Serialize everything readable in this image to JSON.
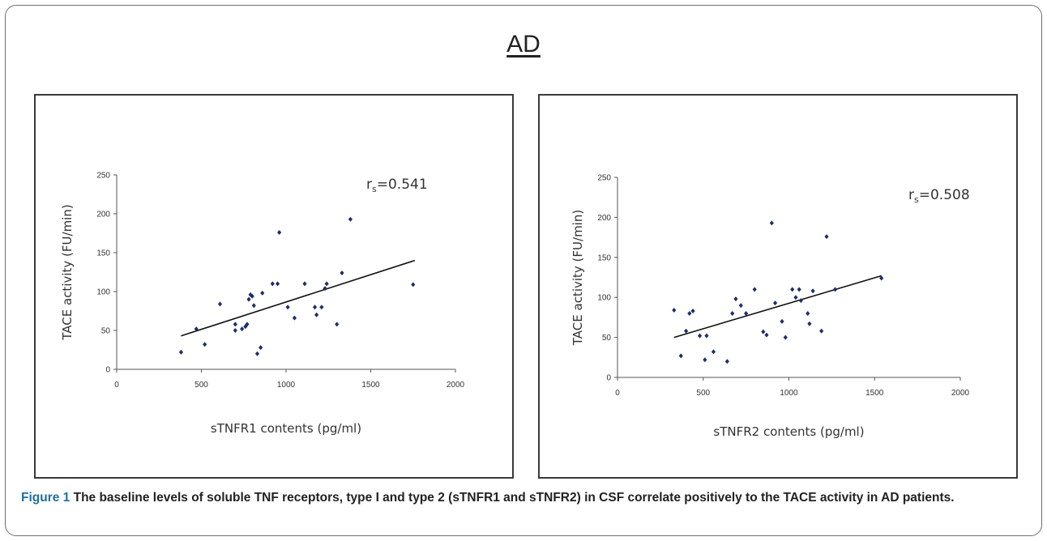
{
  "figure": {
    "title": "AD",
    "caption_lead": "Figure 1",
    "caption_text": " The baseline levels of soluble TNF receptors, type I and type 2 (sTNFR1 and sTNFR2) in CSF correlate positively to the TACE activity in AD patients."
  },
  "chart_data": [
    {
      "type": "scatter",
      "xlabel": "sTNFR1 contents (pg/ml)",
      "ylabel": "TACE activity (FU/min)",
      "annotation": {
        "r": "r",
        "sub": "s",
        "value": "=0.541"
      },
      "xlim": [
        0,
        2000
      ],
      "ylim": [
        0,
        250
      ],
      "xticks": [
        0,
        500,
        1000,
        1500,
        2000
      ],
      "yticks": [
        0,
        50,
        100,
        150,
        200,
        250
      ],
      "grid": false,
      "colors": {
        "points": "#1f2d6b",
        "trend": "#111111"
      },
      "trendline": {
        "x": [
          380,
          1760
        ],
        "y": [
          43,
          140
        ]
      },
      "points": [
        [
          380,
          22
        ],
        [
          470,
          52
        ],
        [
          520,
          32
        ],
        [
          610,
          84
        ],
        [
          700,
          58
        ],
        [
          700,
          50
        ],
        [
          740,
          52
        ],
        [
          760,
          55
        ],
        [
          770,
          58
        ],
        [
          780,
          90
        ],
        [
          790,
          96
        ],
        [
          800,
          94
        ],
        [
          810,
          82
        ],
        [
          830,
          20
        ],
        [
          850,
          28
        ],
        [
          860,
          98
        ],
        [
          920,
          110
        ],
        [
          950,
          110
        ],
        [
          960,
          176
        ],
        [
          1010,
          80
        ],
        [
          1050,
          66
        ],
        [
          1110,
          110
        ],
        [
          1170,
          80
        ],
        [
          1180,
          70
        ],
        [
          1210,
          80
        ],
        [
          1230,
          104
        ],
        [
          1240,
          110
        ],
        [
          1300,
          58
        ],
        [
          1330,
          124
        ],
        [
          1380,
          193
        ],
        [
          1750,
          109
        ]
      ]
    },
    {
      "type": "scatter",
      "xlabel": "sTNFR2 contents (pg/ml)",
      "ylabel": "TACE activity (FU/min)",
      "annotation": {
        "r": "r",
        "sub": "s",
        "value": "=0.508"
      },
      "xlim": [
        0,
        2000
      ],
      "ylim": [
        0,
        250
      ],
      "xticks": [
        0,
        500,
        1000,
        1500,
        2000
      ],
      "yticks": [
        0,
        50,
        100,
        150,
        200,
        250
      ],
      "grid": false,
      "colors": {
        "points": "#1f2d6b",
        "trend": "#111111"
      },
      "trendline": {
        "x": [
          330,
          1540
        ],
        "y": [
          50,
          127
        ]
      },
      "points": [
        [
          330,
          84
        ],
        [
          370,
          27
        ],
        [
          400,
          58
        ],
        [
          420,
          80
        ],
        [
          440,
          83
        ],
        [
          480,
          52
        ],
        [
          510,
          22
        ],
        [
          520,
          52
        ],
        [
          560,
          32
        ],
        [
          640,
          20
        ],
        [
          670,
          80
        ],
        [
          690,
          98
        ],
        [
          720,
          90
        ],
        [
          750,
          80
        ],
        [
          800,
          110
        ],
        [
          850,
          57
        ],
        [
          870,
          53
        ],
        [
          900,
          193
        ],
        [
          920,
          93
        ],
        [
          960,
          70
        ],
        [
          980,
          50
        ],
        [
          1020,
          110
        ],
        [
          1040,
          100
        ],
        [
          1060,
          110
        ],
        [
          1070,
          96
        ],
        [
          1110,
          80
        ],
        [
          1120,
          67
        ],
        [
          1140,
          108
        ],
        [
          1190,
          58
        ],
        [
          1220,
          176
        ],
        [
          1270,
          110
        ],
        [
          1540,
          124
        ]
      ]
    }
  ]
}
